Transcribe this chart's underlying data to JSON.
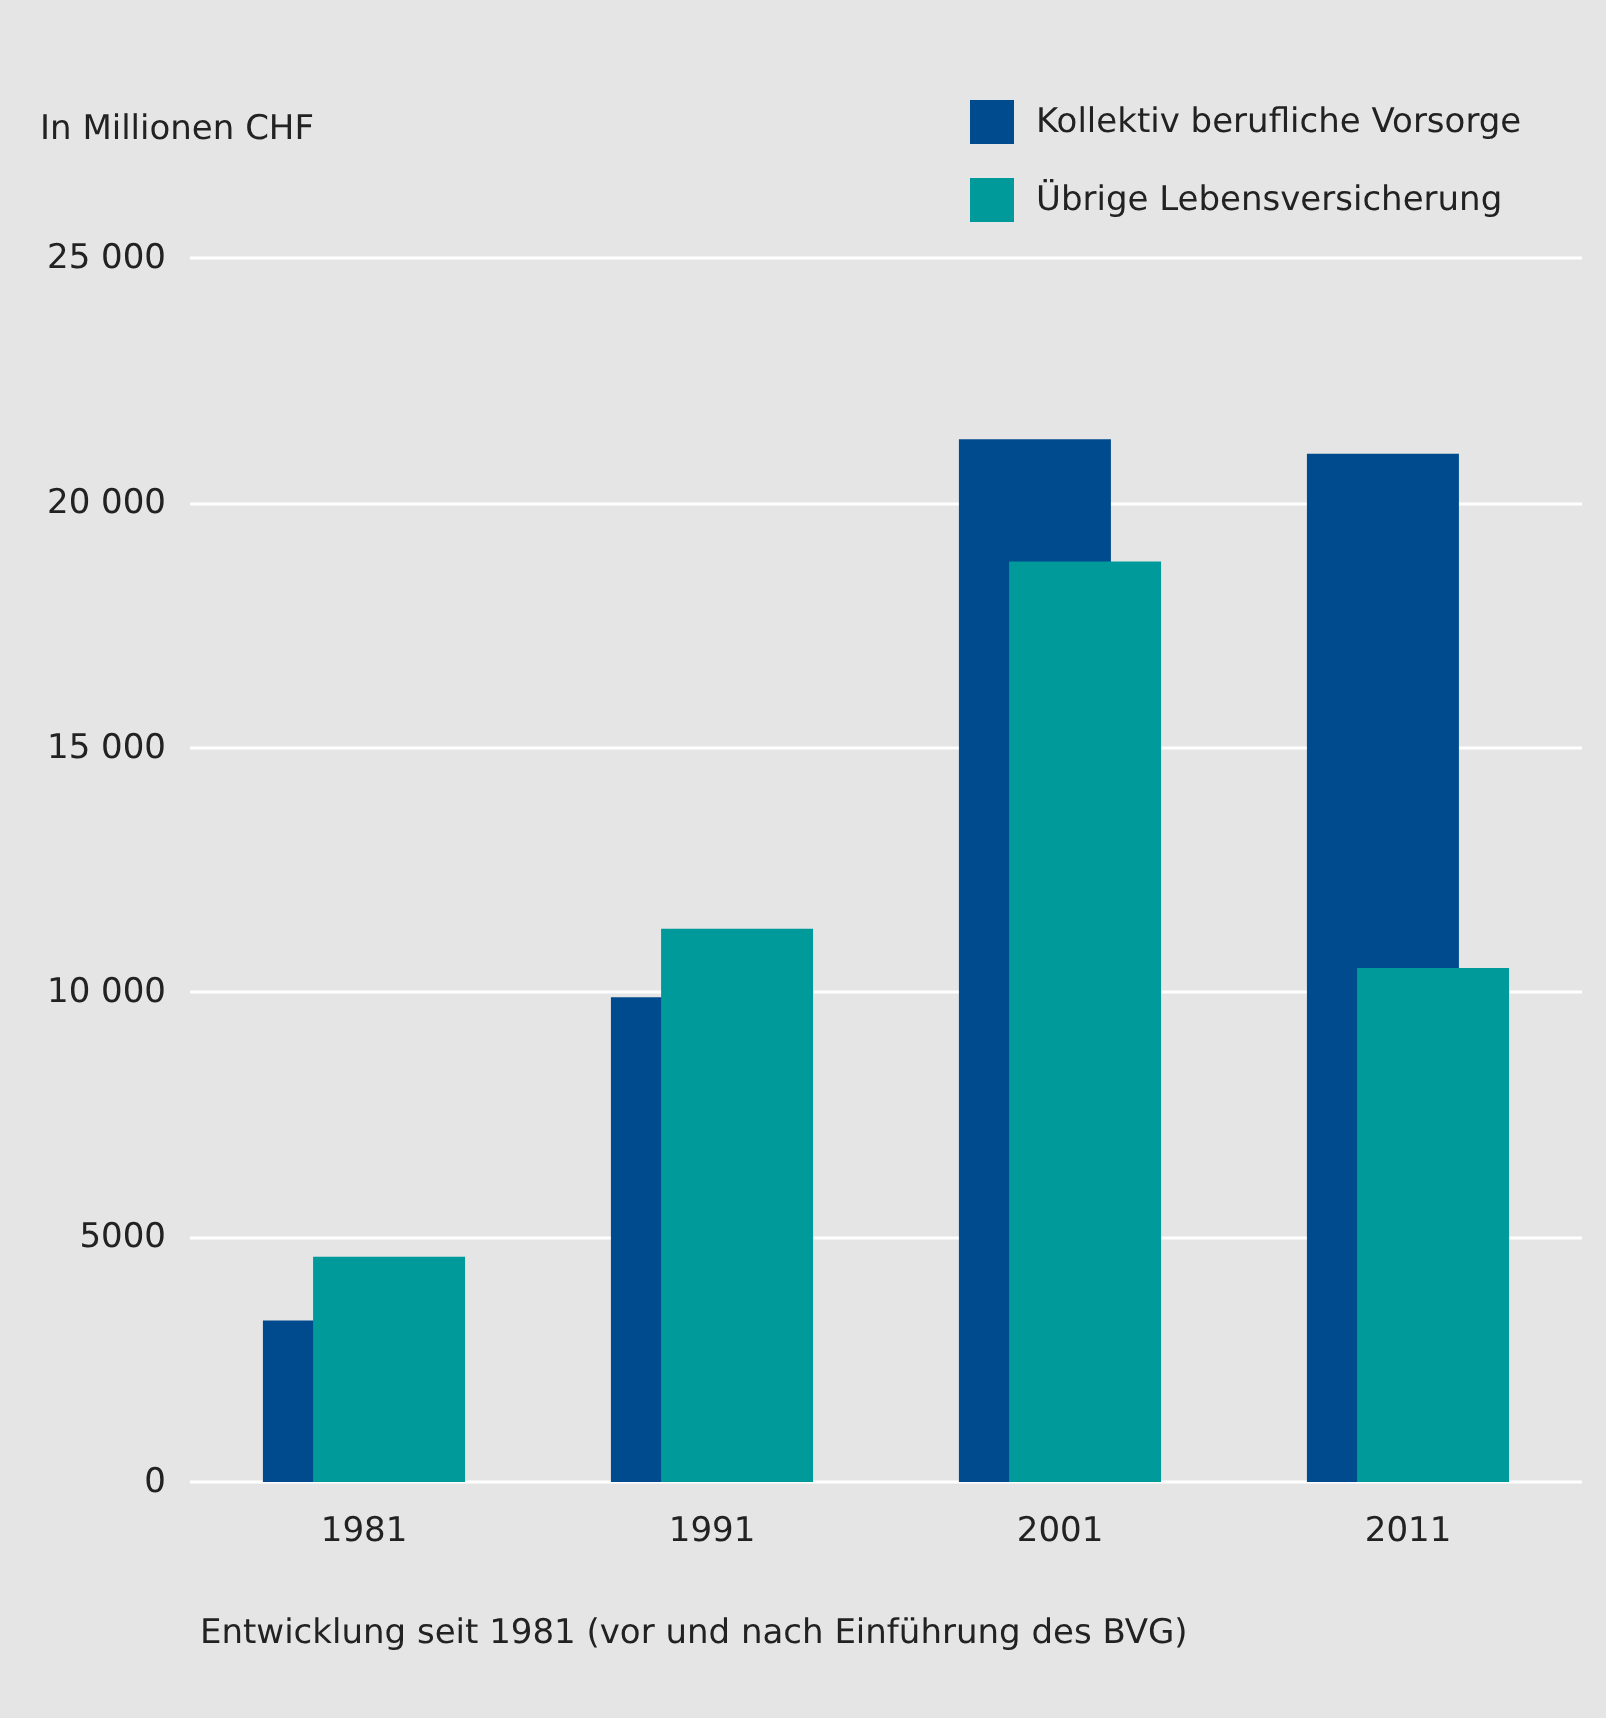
{
  "chart_data": {
    "type": "bar",
    "ylabel": "In Millionen CHF",
    "xlabel": "Entwicklung seit 1981 (vor und nach Einführung des BVG)",
    "categories": [
      "1981",
      "1991",
      "2001",
      "2011"
    ],
    "series": [
      {
        "name": "Kollektiv berufliche Vorsorge",
        "color": "#004b8d",
        "values": [
          3300,
          9900,
          21300,
          21000
        ]
      },
      {
        "name": "Übrige Lebensversicherung",
        "color": "#009a9a",
        "values": [
          4600,
          11300,
          18800,
          10500
        ]
      }
    ],
    "ylim": [
      0,
      25000
    ],
    "yticks": [
      0,
      5000,
      {
        "value": 10000,
        "label": "10 000"
      },
      {
        "value": 15000,
        "label": "15 000"
      },
      {
        "value": 20000,
        "label": "20 000"
      },
      {
        "value": 25000,
        "label": "25 000"
      }
    ],
    "grid": "y",
    "legend": "top right"
  }
}
